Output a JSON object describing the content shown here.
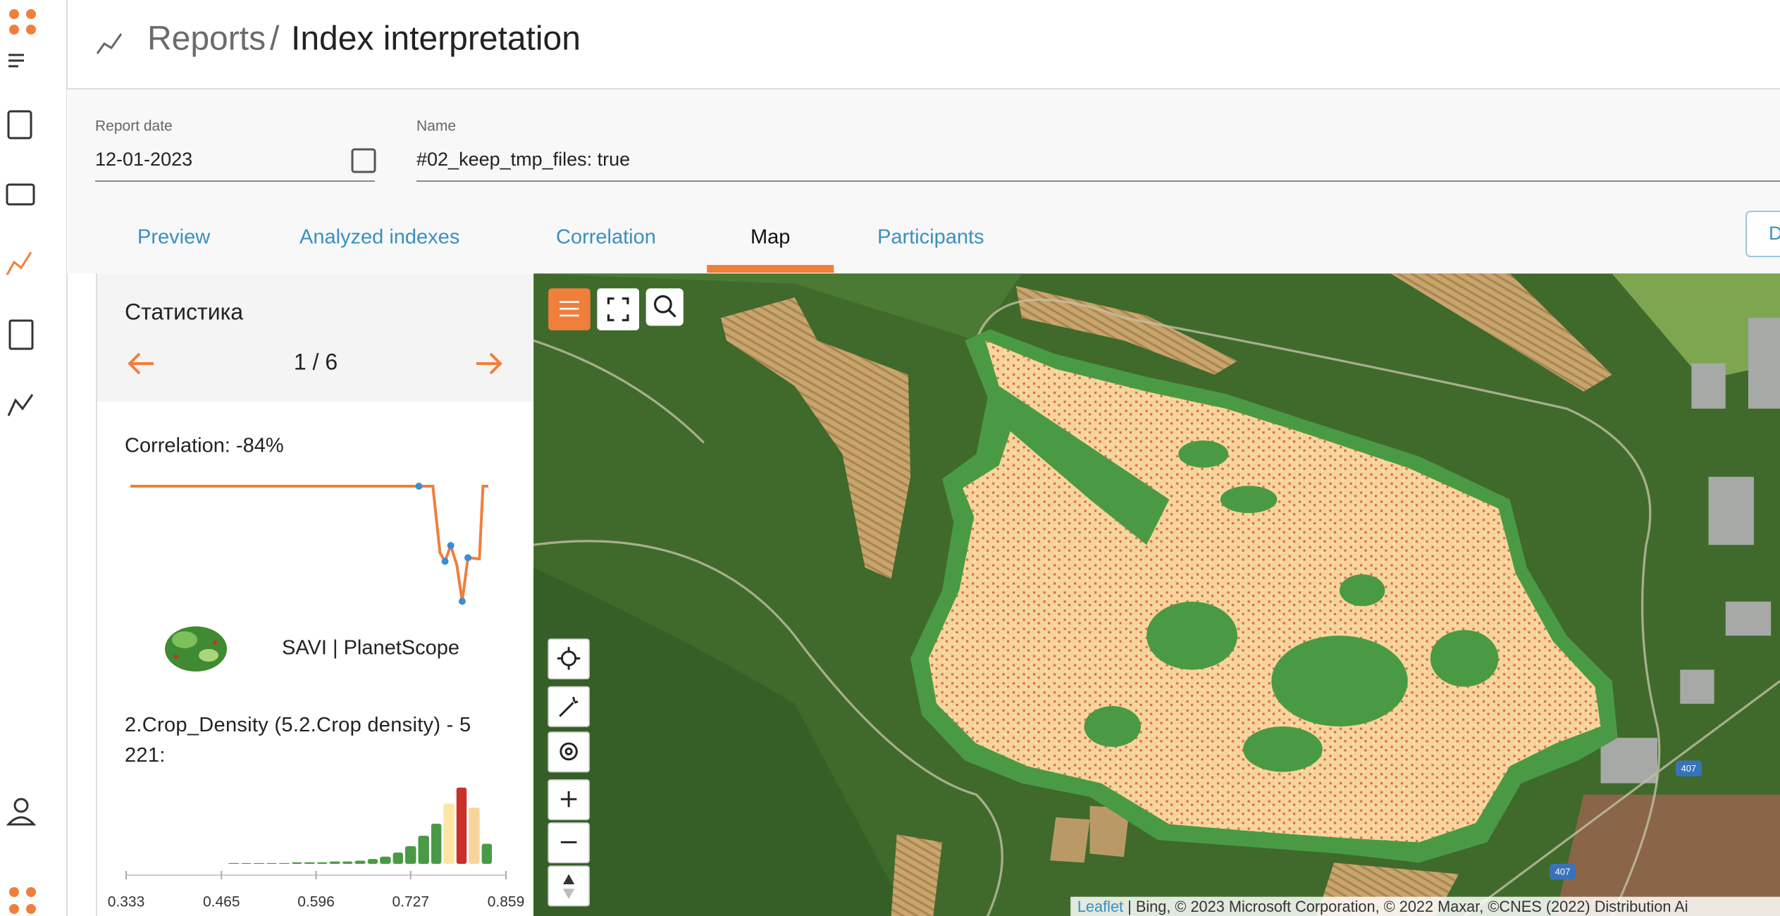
{
  "header": {
    "section": "Reports",
    "separator": "/",
    "page": "Index interpretation"
  },
  "form": {
    "report_date": {
      "label": "Report date",
      "value": "12-01-2023"
    },
    "name": {
      "label": "Name",
      "value": "#02_keep_tmp_files: true"
    }
  },
  "tabs": [
    "Preview",
    "Analyzed indexes",
    "Correlation",
    "Map",
    "Participants"
  ],
  "active_tab": 3,
  "action_button": "D",
  "statistics": {
    "title": "Статистика",
    "page": "1 / 6",
    "correlation": "Correlation: -84%",
    "source": "SAVI | PlanetScope",
    "index_label": "2.Crop_Density (5.2.Crop density) - 5 221:"
  },
  "correlation_chart": {
    "type": "line",
    "color": "#f07f3c",
    "marker_color": "#3a8fd0",
    "x": [
      0,
      80.6,
      84.5,
      86.5,
      87.9,
      89.5,
      91.2,
      92.7,
      94.3,
      97.5,
      98.5,
      100
    ],
    "values": [
      100,
      100,
      100,
      45,
      38,
      51,
      35,
      5,
      41,
      40,
      100,
      100
    ],
    "markers": [
      1,
      4,
      5,
      7,
      8
    ],
    "xlim": [
      0,
      100
    ],
    "ylim": [
      0,
      100
    ]
  },
  "histogram": {
    "type": "histogram",
    "bins": [
      0.333,
      0.351,
      0.368,
      0.386,
      0.403,
      0.421,
      0.438,
      0.456,
      0.473,
      0.491,
      0.508,
      0.526,
      0.543,
      0.561,
      0.578,
      0.596,
      0.613,
      0.631,
      0.648,
      0.666,
      0.683,
      0.701,
      0.718,
      0.736,
      0.754,
      0.771,
      0.789,
      0.806,
      0.824,
      0.841,
      0.859
    ],
    "counts": [
      0,
      0,
      0,
      0,
      0,
      0,
      0,
      0,
      1,
      1,
      1,
      1,
      1,
      2,
      2,
      2,
      3,
      3,
      4,
      6,
      9,
      14,
      22,
      35,
      50,
      75,
      95,
      70,
      25,
      0
    ],
    "colors": [
      "#4a9a45",
      "#4a9a45",
      "#4a9a45",
      "#4a9a45",
      "#4a9a45",
      "#4a9a45",
      "#4a9a45",
      "#4a9a45",
      "#4a9a45",
      "#4a9a45",
      "#4a9a45",
      "#4a9a45",
      "#4a9a45",
      "#4a9a45",
      "#4a9a45",
      "#4a9a45",
      "#4a9a45",
      "#4a9a45",
      "#4a9a45",
      "#4a9a45",
      "#4a9a45",
      "#4a9a45",
      "#4a9a45",
      "#4a9a45",
      "#4a9a45",
      "#fbe6a6",
      "#c8302a",
      "#f7d59a",
      "#4a9a45",
      "#4a9a45"
    ],
    "xlim": [
      0.333,
      0.859
    ],
    "ylim": [
      0,
      100
    ],
    "xticks": [
      0.333,
      0.465,
      0.596,
      0.727,
      0.859
    ]
  },
  "map": {
    "attribution_link": "Leaflet",
    "attribution": "| Bing, © 2023 Microsoft Corporation, © 2022 Maxar, ©CNES (2022) Distribution Ai",
    "road_labels": [
      "407",
      "407"
    ]
  }
}
